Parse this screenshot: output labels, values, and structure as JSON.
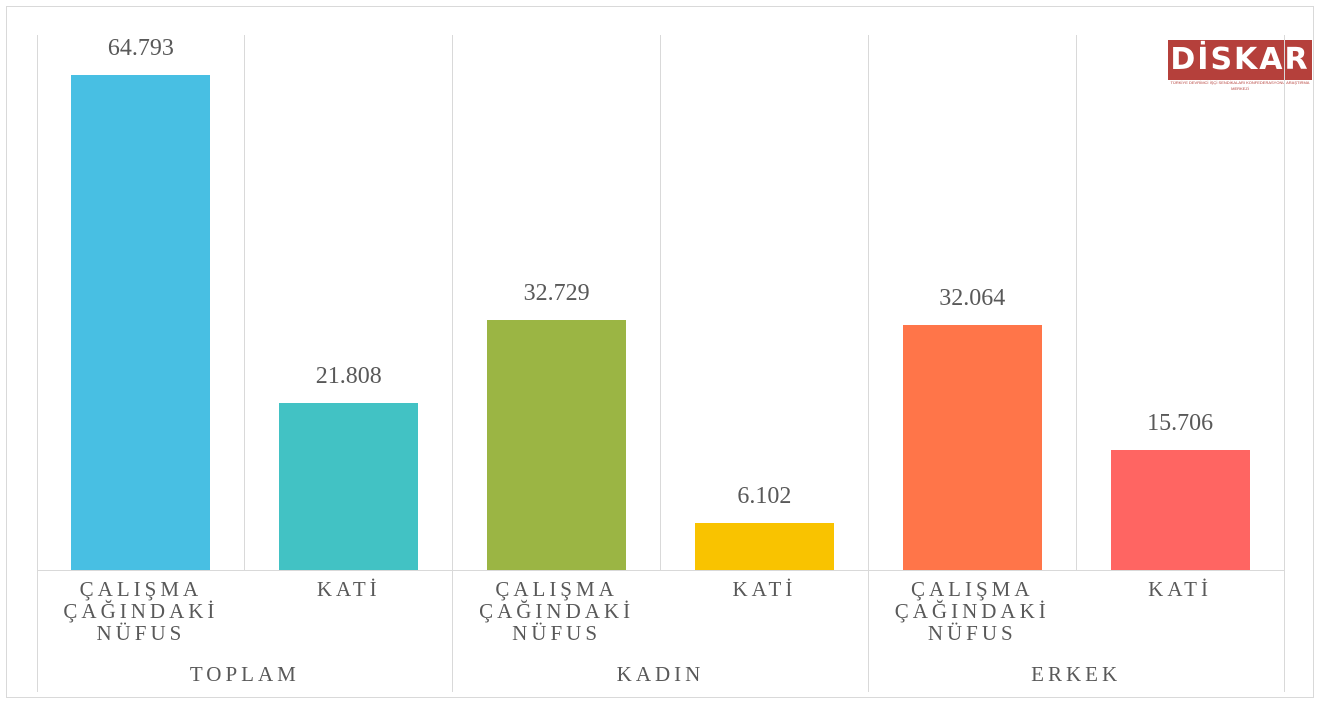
{
  "chart_data": {
    "type": "bar",
    "categories": [
      "ÇALIŞMA ÇAĞINDAKİ NÜFUS",
      "KATİ",
      "ÇALIŞMA ÇAĞINDAKİ NÜFUS",
      "KATİ",
      "ÇALIŞMA ÇAĞINDAKİ NÜFUS",
      "KATİ"
    ],
    "groups": [
      "TOPLAM",
      "KADIN",
      "ERKEK"
    ],
    "values": [
      64793,
      21808,
      32729,
      6102,
      32064,
      15706
    ],
    "value_labels": [
      "64.793",
      "21.808",
      "32.729",
      "6.102",
      "32.064",
      "15.706"
    ],
    "colors": [
      "#48bfe3",
      "#42c2c4",
      "#9bb544",
      "#f9c300",
      "#ff7549",
      "#ff6562"
    ],
    "ylim": [
      0,
      70000
    ],
    "logo": {
      "text": "DİSKAR",
      "subtitle": "TÜRKİYE DEVRİMCİ İŞÇİ SENDİKALARI KONFEDERASYONU ARAŞTIRMA MERKEZİ"
    }
  }
}
